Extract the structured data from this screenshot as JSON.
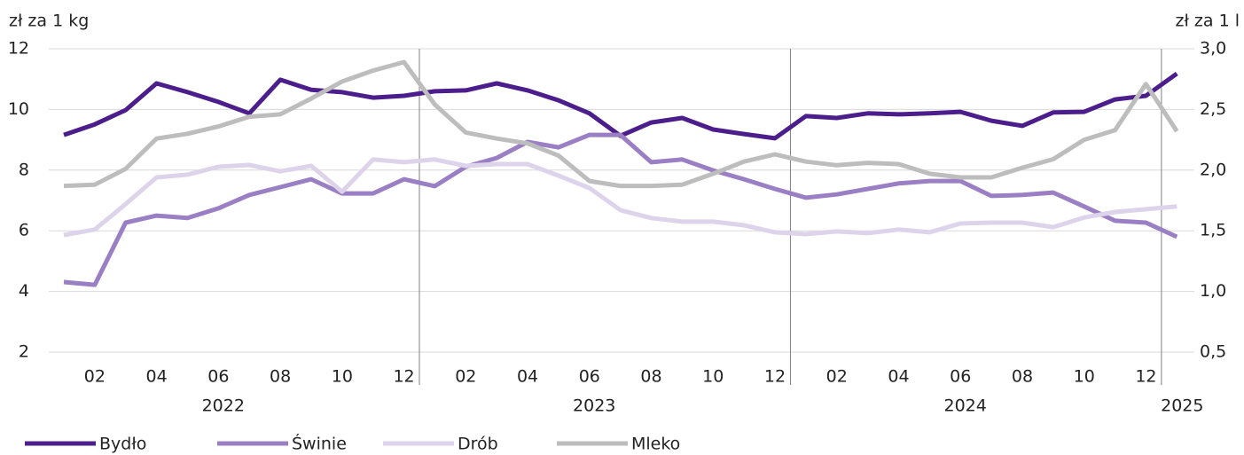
{
  "chart_data": {
    "type": "line",
    "y_label": "zł za 1 kg",
    "y2_label": "zł za 1 l",
    "categories": [
      null,
      "02",
      null,
      "04",
      null,
      "06",
      null,
      "08",
      null,
      "10",
      null,
      "12",
      null,
      "02",
      null,
      "04",
      null,
      "06",
      null,
      "08",
      null,
      "10",
      null,
      "12",
      null,
      "02",
      null,
      "04",
      null,
      "06",
      null,
      "08",
      null,
      "10",
      null,
      "12",
      null
    ],
    "x_groups": [
      "2022",
      "2023",
      "2024",
      "2025"
    ],
    "series": [
      {
        "name": "Bydło",
        "color": "#4b1e8c",
        "values": [
          9.16,
          9.51,
          9.98,
          10.86,
          10.57,
          10.25,
          9.87,
          10.98,
          10.65,
          10.57,
          10.39,
          10.45,
          10.6,
          10.63,
          10.86,
          10.63,
          10.3,
          9.87,
          9.13,
          9.57,
          9.72,
          9.34,
          9.19,
          9.05,
          9.78,
          9.72,
          9.87,
          9.84,
          9.87,
          9.92,
          9.63,
          9.46,
          9.9,
          9.92,
          10.33,
          10.45,
          11.18
        ]
      },
      {
        "name": "Świnie",
        "color": "#9a7fc4",
        "values": [
          4.31,
          4.22,
          6.27,
          6.5,
          6.42,
          6.74,
          7.18,
          7.44,
          7.7,
          7.23,
          7.23,
          7.7,
          7.47,
          8.11,
          8.4,
          8.93,
          8.75,
          9.16,
          9.16,
          8.26,
          8.35,
          7.99,
          7.7,
          7.38,
          7.09,
          7.2,
          7.38,
          7.56,
          7.64,
          7.64,
          7.15,
          7.18,
          7.26,
          6.8,
          6.33,
          6.27,
          5.8
        ]
      },
      {
        "name": "Drób",
        "color": "#ddd3ea",
        "values": [
          5.86,
          6.04,
          6.88,
          7.76,
          7.85,
          8.11,
          8.17,
          7.96,
          8.14,
          7.29,
          8.35,
          8.26,
          8.35,
          8.14,
          8.2,
          8.2,
          7.82,
          7.41,
          6.68,
          6.42,
          6.3,
          6.3,
          6.18,
          5.95,
          5.89,
          5.98,
          5.92,
          6.04,
          5.95,
          6.24,
          6.27,
          6.27,
          6.12,
          6.44,
          6.62,
          6.71,
          6.8
        ]
      },
      {
        "name": "Mleko",
        "color": "#bdbdbd",
        "axis": "y2",
        "values": [
          1.87,
          1.88,
          2.01,
          2.26,
          2.3,
          2.36,
          2.44,
          2.46,
          2.59,
          2.73,
          2.82,
          2.89,
          2.54,
          2.31,
          2.26,
          2.22,
          2.12,
          1.91,
          1.87,
          1.87,
          1.88,
          1.97,
          2.07,
          2.13,
          2.07,
          2.04,
          2.06,
          2.05,
          1.97,
          1.94,
          1.94,
          2.02,
          2.09,
          2.25,
          2.33,
          2.71,
          2.32
        ]
      }
    ],
    "ylim": [
      2,
      12
    ],
    "yticks": [
      2,
      4,
      6,
      8,
      10,
      12
    ],
    "y2lim": [
      0.5,
      3.0
    ],
    "y2ticks": [
      {
        "value": 0.5,
        "label": "0,5"
      },
      {
        "value": 1.0,
        "label": "1,0"
      },
      {
        "value": 1.5,
        "label": "1,5"
      },
      {
        "value": 2.0,
        "label": "2,0"
      },
      {
        "value": 2.5,
        "label": "2,5"
      },
      {
        "value": 3.0,
        "label": "3,0"
      }
    ],
    "grid": true,
    "legend": "bottom"
  }
}
